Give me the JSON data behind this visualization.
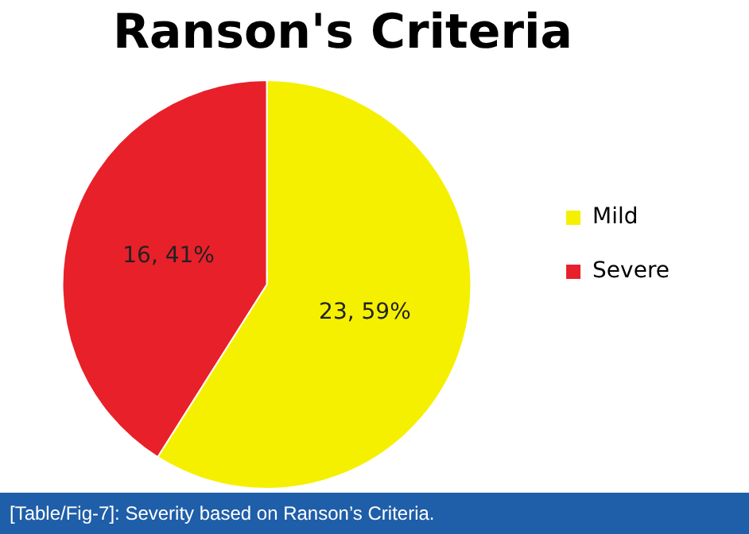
{
  "chart_data": {
    "type": "pie",
    "title": "Ranson's Criteria",
    "categories": [
      "Mild",
      "Severe"
    ],
    "values": [
      23,
      16
    ],
    "colors": [
      "#f5f000",
      "#e8202a"
    ],
    "value_labels": [
      "23, 59%",
      "16, 41%"
    ],
    "legend": "right",
    "annotations": [
      "[Table/Fig-7]: Severity based on Ranson’s Criteria."
    ]
  }
}
